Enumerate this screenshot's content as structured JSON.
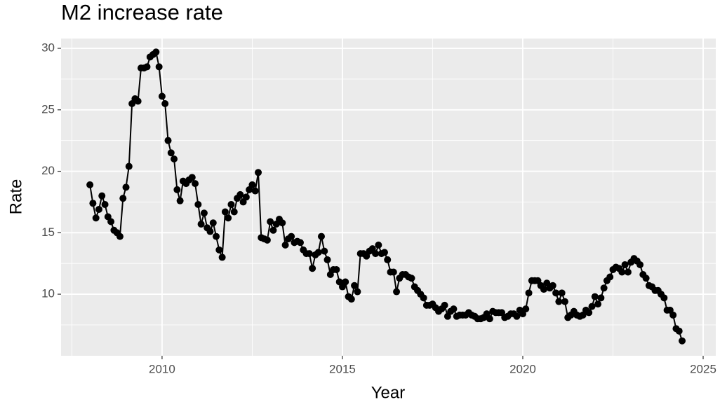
{
  "chart_data": {
    "type": "line",
    "title": "M2 increase rate",
    "x_label": "Year",
    "y_label": "Rate",
    "x": [
      2008,
      2008.083,
      2008.167,
      2008.25,
      2008.333,
      2008.417,
      2008.5,
      2008.583,
      2008.667,
      2008.75,
      2008.833,
      2008.917,
      2009,
      2009.083,
      2009.167,
      2009.25,
      2009.333,
      2009.417,
      2009.5,
      2009.583,
      2009.667,
      2009.75,
      2009.833,
      2009.917,
      2010,
      2010.083,
      2010.167,
      2010.25,
      2010.333,
      2010.417,
      2010.5,
      2010.583,
      2010.667,
      2010.75,
      2010.833,
      2010.917,
      2011,
      2011.083,
      2011.167,
      2011.25,
      2011.333,
      2011.417,
      2011.5,
      2011.583,
      2011.667,
      2011.75,
      2011.833,
      2011.917,
      2012,
      2012.083,
      2012.167,
      2012.25,
      2012.333,
      2012.417,
      2012.5,
      2012.583,
      2012.667,
      2012.75,
      2012.833,
      2012.917,
      2013,
      2013.083,
      2013.167,
      2013.25,
      2013.333,
      2013.417,
      2013.5,
      2013.583,
      2013.667,
      2013.75,
      2013.833,
      2013.917,
      2014,
      2014.083,
      2014.167,
      2014.25,
      2014.333,
      2014.417,
      2014.5,
      2014.583,
      2014.667,
      2014.75,
      2014.833,
      2014.917,
      2015,
      2015.083,
      2015.167,
      2015.25,
      2015.333,
      2015.417,
      2015.5,
      2015.583,
      2015.667,
      2015.75,
      2015.833,
      2015.917,
      2016,
      2016.083,
      2016.167,
      2016.25,
      2016.333,
      2016.417,
      2016.5,
      2016.583,
      2016.667,
      2016.75,
      2016.833,
      2016.917,
      2017,
      2017.083,
      2017.167,
      2017.25,
      2017.333,
      2017.417,
      2017.5,
      2017.583,
      2017.667,
      2017.75,
      2017.833,
      2017.917,
      2018,
      2018.083,
      2018.167,
      2018.25,
      2018.333,
      2018.417,
      2018.5,
      2018.583,
      2018.667,
      2018.75,
      2018.833,
      2018.917,
      2019,
      2019.083,
      2019.167,
      2019.25,
      2019.333,
      2019.417,
      2019.5,
      2019.583,
      2019.667,
      2019.75,
      2019.833,
      2019.917,
      2020,
      2020.083,
      2020.167,
      2020.25,
      2020.333,
      2020.417,
      2020.5,
      2020.583,
      2020.667,
      2020.75,
      2020.833,
      2020.917,
      2021,
      2021.083,
      2021.167,
      2021.25,
      2021.333,
      2021.417,
      2021.5,
      2021.583,
      2021.667,
      2021.75,
      2021.833,
      2021.917,
      2022,
      2022.083,
      2022.167,
      2022.25,
      2022.333,
      2022.417,
      2022.5,
      2022.583,
      2022.667,
      2022.75,
      2022.833,
      2022.917,
      2023,
      2023.083,
      2023.167,
      2023.25,
      2023.333,
      2023.417,
      2023.5,
      2023.583,
      2023.667,
      2023.75,
      2023.833,
      2023.917,
      2024,
      2024.083,
      2024.167,
      2024.25,
      2024.333,
      2024.417
    ],
    "series": [
      {
        "color": "#000000",
        "values": [
          18.9,
          17.4,
          16.2,
          16.9,
          18.0,
          17.3,
          16.3,
          15.9,
          15.2,
          15.0,
          14.7,
          17.8,
          18.7,
          20.4,
          25.5,
          25.9,
          25.7,
          28.4,
          28.4,
          28.5,
          29.3,
          29.5,
          29.7,
          28.5,
          26.1,
          25.5,
          22.5,
          21.5,
          21.0,
          18.5,
          17.6,
          19.2,
          19.0,
          19.3,
          19.5,
          19.0,
          17.3,
          15.7,
          16.6,
          15.4,
          15.1,
          15.8,
          14.7,
          13.6,
          13.0,
          16.7,
          16.2,
          17.3,
          16.7,
          17.8,
          18.1,
          17.5,
          17.9,
          18.5,
          18.9,
          18.4,
          19.9,
          14.6,
          14.5,
          14.4,
          15.9,
          15.2,
          15.7,
          16.1,
          15.8,
          14.0,
          14.5,
          14.7,
          14.2,
          14.3,
          14.2,
          13.6,
          13.3,
          13.3,
          12.1,
          13.2,
          13.4,
          14.7,
          13.5,
          12.8,
          11.6,
          12.0,
          12.0,
          11.0,
          10.6,
          11.0,
          9.8,
          9.6,
          10.7,
          10.2,
          13.3,
          13.3,
          13.1,
          13.5,
          13.7,
          13.3,
          14.0,
          13.3,
          13.4,
          12.8,
          11.8,
          11.8,
          10.2,
          11.3,
          11.6,
          11.6,
          11.4,
          11.3,
          10.6,
          10.3,
          10.0,
          9.7,
          9.1,
          9.1,
          9.2,
          8.9,
          8.6,
          8.8,
          9.1,
          8.2,
          8.6,
          8.8,
          8.2,
          8.3,
          8.3,
          8.3,
          8.5,
          8.3,
          8.2,
          8.0,
          8.0,
          8.1,
          8.4,
          8.0,
          8.6,
          8.5,
          8.5,
          8.5,
          8.1,
          8.2,
          8.4,
          8.4,
          8.2,
          8.7,
          8.4,
          8.8,
          10.1,
          11.1,
          11.1,
          11.1,
          10.7,
          10.4,
          10.9,
          10.5,
          10.7,
          10.1,
          9.4,
          10.1,
          9.4,
          8.1,
          8.3,
          8.6,
          8.3,
          8.2,
          8.3,
          8.7,
          8.5,
          9.0,
          9.8,
          9.2,
          9.7,
          10.5,
          11.1,
          11.4,
          12.0,
          12.2,
          12.1,
          11.8,
          12.4,
          11.8,
          12.6,
          12.9,
          12.7,
          12.4,
          11.6,
          11.3,
          10.7,
          10.6,
          10.3,
          10.3,
          10.0,
          9.7,
          8.7,
          8.7,
          8.3,
          7.2,
          7.0,
          6.2
        ]
      }
    ],
    "xlim": [
      2007.2,
      2025.35
    ],
    "xticks": [
      2010,
      2015,
      2020,
      2025
    ],
    "ylim": [
      4.99,
      30.8
    ],
    "yticks": [
      10,
      15,
      20,
      25,
      30
    ],
    "grid": true,
    "panel_color": "#ebebeb"
  }
}
